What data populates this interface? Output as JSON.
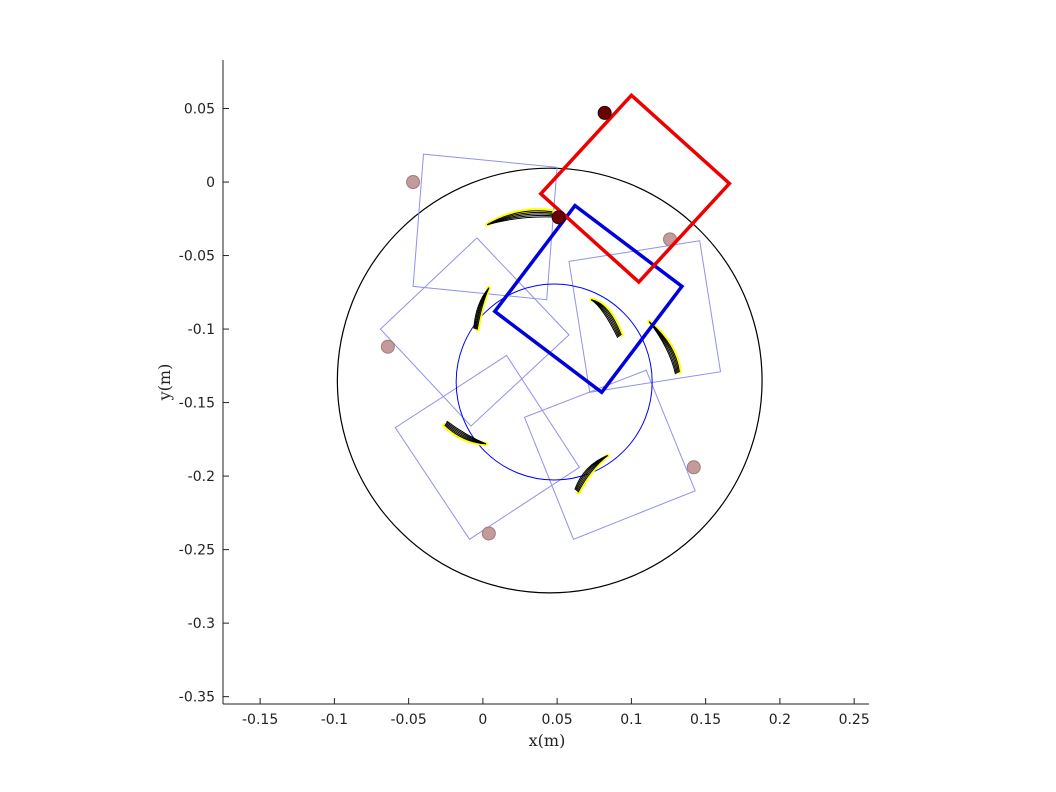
{
  "chart_data": {
    "type": "scatter",
    "title": "",
    "xlabel": "x(m)",
    "ylabel": "y(m)",
    "xlim": [
      -0.175,
      0.26
    ],
    "ylim": [
      -0.355,
      0.083
    ],
    "x_ticks": [
      -0.15,
      -0.1,
      -0.05,
      0,
      0.05,
      0.1,
      0.15,
      0.2,
      0.25
    ],
    "x_tick_labels": [
      "-0.15",
      "-0.1",
      "-0.05",
      "0",
      "0.05",
      "0.1",
      "0.15",
      "0.2",
      "0.25"
    ],
    "y_ticks": [
      0.05,
      0,
      -0.05,
      -0.1,
      -0.15,
      -0.2,
      -0.25,
      -0.3,
      -0.35
    ],
    "y_tick_labels": [
      "0.05",
      "0",
      "-0.05",
      "-0.1",
      "-0.15",
      "-0.2",
      "-0.25",
      "-0.3",
      "-0.35"
    ],
    "grid": false,
    "colors": {
      "outer_circle": "#000000",
      "inner_circle": "#0000ff",
      "ghost_square": "#9090ee",
      "blue_square": "#0000dd",
      "red_square": "#ee0000",
      "ghost_marker": "#c49a9a",
      "dark_marker": "#6b0000",
      "trail_yellow": "#ffff00",
      "trail_black": "#000000"
    },
    "outer_circle": {
      "cx": 0.045,
      "cy": -0.135,
      "r": 0.143
    },
    "inner_circle": {
      "cx": 0.048,
      "cy": -0.136,
      "r": 0.066
    },
    "ghost_squares": [
      [
        [
          -0.04,
          0.019
        ],
        [
          0.05,
          0.01
        ],
        [
          0.043,
          -0.08
        ],
        [
          -0.047,
          -0.071
        ]
      ],
      [
        [
          -0.004,
          -0.038
        ],
        [
          0.058,
          -0.104
        ],
        [
          -0.008,
          -0.166
        ],
        [
          -0.069,
          -0.1
        ]
      ],
      [
        [
          0.016,
          -0.118
        ],
        [
          0.065,
          -0.194
        ],
        [
          -0.009,
          -0.243
        ],
        [
          -0.059,
          -0.167
        ]
      ],
      [
        [
          0.11,
          -0.128
        ],
        [
          0.143,
          -0.21
        ],
        [
          0.061,
          -0.243
        ],
        [
          0.028,
          -0.16
        ]
      ],
      [
        [
          0.146,
          -0.04
        ],
        [
          0.058,
          -0.054
        ],
        [
          0.072,
          -0.143
        ],
        [
          0.16,
          -0.129
        ]
      ]
    ],
    "blue_square": [
      [
        0.062,
        -0.016
      ],
      [
        0.134,
        -0.071
      ],
      [
        0.08,
        -0.143
      ],
      [
        0.008,
        -0.088
      ]
    ],
    "red_square": [
      [
        0.1,
        0.059
      ],
      [
        0.166,
        -0.001
      ],
      [
        0.105,
        -0.068
      ],
      [
        0.039,
        -0.008
      ]
    ],
    "ghost_markers": [
      [
        -0.047,
        0.0
      ],
      [
        0.126,
        -0.039
      ],
      [
        -0.064,
        -0.112
      ],
      [
        0.142,
        -0.194
      ],
      [
        0.004,
        -0.239
      ]
    ],
    "dark_markers": [
      [
        0.082,
        0.047
      ],
      [
        0.051,
        -0.024
      ]
    ],
    "trails": [
      {
        "from": [
          0.003,
          -0.029
        ],
        "ctrl": [
          0.024,
          -0.02
        ],
        "to": [
          0.047,
          -0.022
        ],
        "spread": 0.006
      },
      {
        "from": [
          0.073,
          -0.08
        ],
        "ctrl": [
          0.083,
          -0.084
        ],
        "to": [
          0.092,
          -0.105
        ],
        "spread": 0.005
      },
      {
        "from": [
          0.112,
          -0.095
        ],
        "ctrl": [
          0.128,
          -0.112
        ],
        "to": [
          0.131,
          -0.13
        ],
        "spread": 0.005
      },
      {
        "from": [
          0.084,
          -0.186
        ],
        "ctrl": [
          0.07,
          -0.194
        ],
        "to": [
          0.063,
          -0.21
        ],
        "spread": 0.005
      },
      {
        "from": [
          0.002,
          -0.178
        ],
        "ctrl": [
          -0.012,
          -0.175
        ],
        "to": [
          -0.025,
          -0.164
        ],
        "spread": 0.005
      },
      {
        "from": [
          0.004,
          -0.072
        ],
        "ctrl": [
          -0.003,
          -0.083
        ],
        "to": [
          -0.005,
          -0.1
        ],
        "spread": 0.004
      }
    ]
  }
}
